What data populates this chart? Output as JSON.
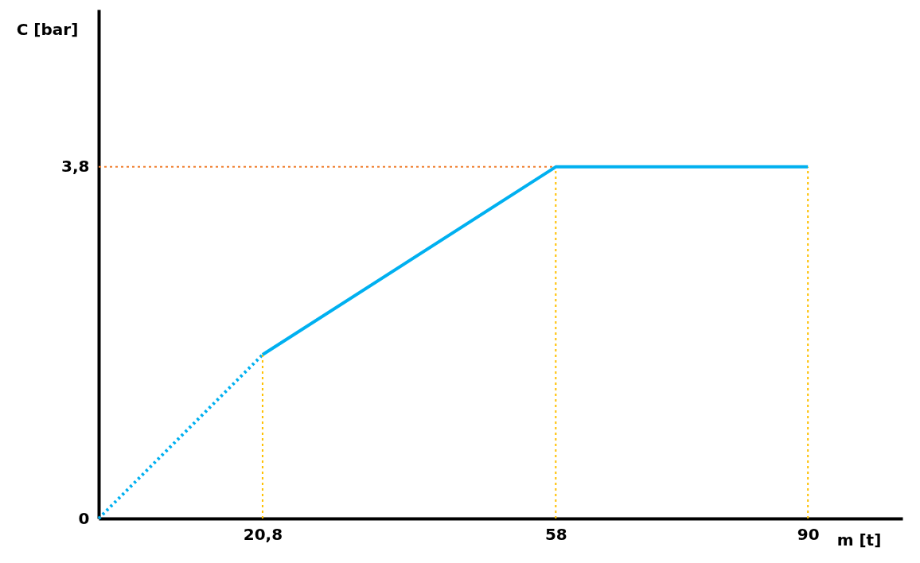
{
  "chart_data": {
    "type": "line",
    "xlabel": "m [t]",
    "ylabel": "C [bar]",
    "series": [
      {
        "x": [
          0,
          20.8
        ],
        "values": [
          0,
          1.77
        ],
        "color": "#00b0f0",
        "line_style": "dotted"
      },
      {
        "x": [
          20.8,
          58,
          90
        ],
        "values": [
          1.77,
          3.8,
          3.8
        ],
        "color": "#00b0f0",
        "line_style": "solid"
      }
    ],
    "xlim": [
      0,
      102
    ],
    "ylim": [
      0,
      5.5
    ],
    "xticks": [
      {
        "value": 20.8,
        "label": "20,8"
      },
      58,
      90
    ],
    "yticks": [
      0,
      {
        "value": 3.8,
        "label": "3,8"
      }
    ],
    "ref_lines": [
      {
        "axis": "y",
        "value": 3.8,
        "color": "#f08030",
        "line_style": "dotted"
      },
      {
        "axis": "x",
        "value": 20.8,
        "color": "#ffc000",
        "line_style": "dotted"
      },
      {
        "axis": "x",
        "value": 58,
        "color": "#ffc000",
        "line_style": "dotted"
      },
      {
        "axis": "x",
        "value": 90,
        "color": "#ffc000",
        "line_style": "dotted"
      }
    ],
    "marker": "none"
  }
}
